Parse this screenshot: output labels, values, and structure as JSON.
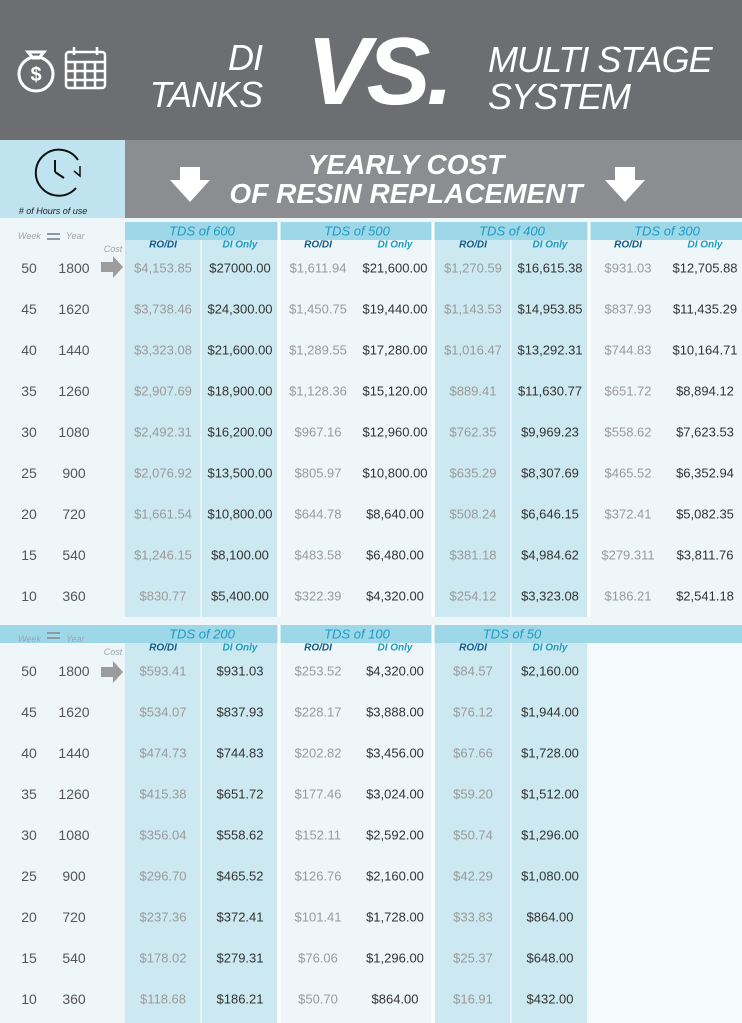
{
  "header": {
    "left": [
      "DI",
      "TANKS"
    ],
    "vs": "VS.",
    "right": [
      "MULTI STAGE",
      "SYSTEM"
    ]
  },
  "banner": {
    "hours_label": "# of Hours of use",
    "title": [
      "YEARLY COST",
      "OF RESIN REPLACEMENT"
    ]
  },
  "tables": [
    {
      "week_label": "Week",
      "year_label": "Year",
      "cost_label": "Cost",
      "groups": [
        {
          "title": "TDS of 600",
          "columns": [
            "RO/DI",
            "DI Only"
          ]
        },
        {
          "title": "TDS of 500",
          "columns": [
            "RO/DI",
            "DI Only"
          ]
        },
        {
          "title": "TDS of 400",
          "columns": [
            "RO/DI",
            "DI Only"
          ]
        },
        {
          "title": "TDS of 300",
          "columns": [
            "RO/DI",
            "DI Only"
          ]
        }
      ],
      "rows": [
        {
          "week": "50",
          "year": "1800",
          "cells": [
            "$4,153.85",
            "$27000.00",
            "$1,611.94",
            "$21,600.00",
            "$1,270.59",
            "$16,615.38",
            "$931.03",
            "$12,705.88"
          ]
        },
        {
          "week": "45",
          "year": "1620",
          "cells": [
            "$3,738.46",
            "$24,300.00",
            "$1,450.75",
            "$19,440.00",
            "$1,143.53",
            "$14,953.85",
            "$837.93",
            "$11,435.29"
          ]
        },
        {
          "week": "40",
          "year": "1440",
          "cells": [
            "$3,323.08",
            "$21,600.00",
            "$1,289.55",
            "$17,280.00",
            "$1,016.47",
            "$13,292.31",
            "$744.83",
            "$10,164.71"
          ]
        },
        {
          "week": "35",
          "year": "1260",
          "cells": [
            "$2,907.69",
            "$18,900.00",
            "$1,128.36",
            "$15,120.00",
            "$889.41",
            "$11,630.77",
            "$651.72",
            "$8,894.12"
          ]
        },
        {
          "week": "30",
          "year": "1080",
          "cells": [
            "$2,492.31",
            "$16,200.00",
            "$967.16",
            "$12,960.00",
            "$762.35",
            "$9,969.23",
            "$558.62",
            "$7,623.53"
          ]
        },
        {
          "week": "25",
          "year": "900",
          "cells": [
            "$2,076.92",
            "$13,500.00",
            "$805.97",
            "$10,800.00",
            "$635.29",
            "$8,307.69",
            "$465.52",
            "$6,352.94"
          ]
        },
        {
          "week": "20",
          "year": "720",
          "cells": [
            "$1,661.54",
            "$10,800.00",
            "$644.78",
            "$8,640.00",
            "$508.24",
            "$6,646.15",
            "$372.41",
            "$5,082.35"
          ]
        },
        {
          "week": "15",
          "year": "540",
          "cells": [
            "$1,246.15",
            "$8,100.00",
            "$483.58",
            "$6,480.00",
            "$381.18",
            "$4,984.62",
            "$279.311",
            "$3,811.76"
          ]
        },
        {
          "week": "10",
          "year": "360",
          "cells": [
            "$830.77",
            "$5,400.00",
            "$322.39",
            "$4,320.00",
            "$254.12",
            "$3,323.08",
            "$186.21",
            "$2,541.18"
          ]
        }
      ]
    },
    {
      "week_label": "Week",
      "year_label": "Year",
      "cost_label": "Cost",
      "groups": [
        {
          "title": "TDS of 200",
          "columns": [
            "RO/DI",
            "DI Only"
          ]
        },
        {
          "title": "TDS of 100",
          "columns": [
            "RO/DI",
            "DI Only"
          ]
        },
        {
          "title": "TDS of 50",
          "columns": [
            "RO/DI",
            "DI Only"
          ]
        }
      ],
      "rows": [
        {
          "week": "50",
          "year": "1800",
          "cells": [
            "$593.41",
            "$931.03",
            "$253.52",
            "$4,320.00",
            "$84.57",
            "$2,160.00"
          ]
        },
        {
          "week": "45",
          "year": "1620",
          "cells": [
            "$534.07",
            "$837.93",
            "$228.17",
            "$3,888.00",
            "$76.12",
            "$1,944.00"
          ]
        },
        {
          "week": "40",
          "year": "1440",
          "cells": [
            "$474.73",
            "$744.83",
            "$202.82",
            "$3,456.00",
            "$67.66",
            "$1,728.00"
          ]
        },
        {
          "week": "35",
          "year": "1260",
          "cells": [
            "$415.38",
            "$651.72",
            "$177.46",
            "$3,024.00",
            "$59.20",
            "$1,512.00"
          ]
        },
        {
          "week": "30",
          "year": "1080",
          "cells": [
            "$356.04",
            "$558.62",
            "$152.11",
            "$2,592.00",
            "$50.74",
            "$1,296.00"
          ]
        },
        {
          "week": "25",
          "year": "900",
          "cells": [
            "$296.70",
            "$465.52",
            "$126.76",
            "$2,160.00",
            "$42.29",
            "$1,080.00"
          ]
        },
        {
          "week": "20",
          "year": "720",
          "cells": [
            "$237.36",
            "$372.41",
            "$101.41",
            "$1,728.00",
            "$33.83",
            "$864.00"
          ]
        },
        {
          "week": "15",
          "year": "540",
          "cells": [
            "$178.02",
            "$279.31",
            "$76.06",
            "$1,296.00",
            "$25.37",
            "$648.00"
          ]
        },
        {
          "week": "10",
          "year": "360",
          "cells": [
            "$118.68",
            "$186.21",
            "$50.70",
            "$864.00",
            "$16.91",
            "$432.00"
          ]
        }
      ]
    }
  ]
}
